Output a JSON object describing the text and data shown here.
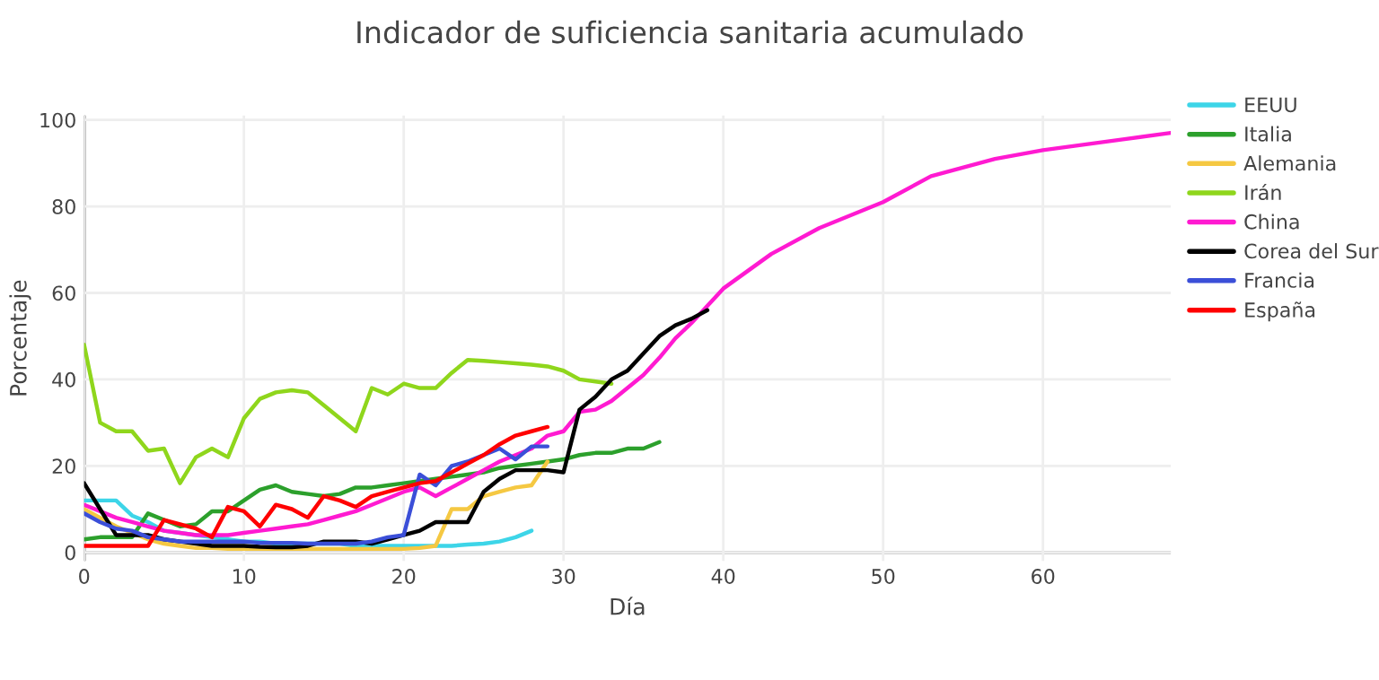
{
  "chart_data": {
    "type": "line",
    "title": "Indicador de suficiencia sanitaria acumulado",
    "xlabel": "Día",
    "ylabel": "Porcentaje",
    "xlim": [
      0,
      68
    ],
    "ylim": [
      -2,
      101
    ],
    "xticks": [
      0,
      10,
      20,
      30,
      40,
      50,
      60
    ],
    "yticks": [
      0,
      20,
      40,
      60,
      80,
      100
    ],
    "grid": true,
    "legend": "right",
    "series": [
      {
        "name": "EEUU",
        "color": "#3dd5e8",
        "x": [
          0,
          1,
          2,
          3,
          4,
          5,
          6,
          7,
          8,
          9,
          10,
          11,
          12,
          13,
          14,
          15,
          16,
          17,
          18,
          19,
          20,
          21,
          22,
          23,
          24,
          25,
          26,
          27,
          28
        ],
        "values": [
          12,
          12,
          12,
          8.5,
          7,
          5,
          4.5,
          4,
          3.5,
          3,
          2.5,
          2.5,
          2,
          2,
          2,
          2,
          2,
          1.5,
          1.5,
          1.5,
          1.5,
          1.5,
          1.5,
          1.5,
          1.8,
          2,
          2.5,
          3.5,
          5
        ]
      },
      {
        "name": "Italia",
        "color": "#2ca02c",
        "x": [
          0,
          1,
          2,
          3,
          4,
          5,
          6,
          7,
          8,
          9,
          10,
          11,
          12,
          13,
          14,
          15,
          16,
          17,
          18,
          19,
          20,
          21,
          22,
          23,
          24,
          25,
          26,
          27,
          28,
          29,
          30,
          31,
          32,
          33,
          34,
          35,
          36
        ],
        "values": [
          3,
          3.5,
          3.5,
          3.5,
          9,
          7.5,
          6,
          6.5,
          9.5,
          9.5,
          12,
          14.5,
          15.5,
          14,
          13.5,
          13,
          13.5,
          15,
          15,
          15.5,
          16,
          16.5,
          17,
          17.5,
          18,
          18.5,
          19.5,
          20,
          20.5,
          21,
          21.5,
          22.5,
          23,
          23,
          24,
          24,
          25.5
        ]
      },
      {
        "name": "Alemania",
        "color": "#f5c842",
        "x": [
          0,
          1,
          2,
          3,
          4,
          5,
          6,
          7,
          8,
          9,
          10,
          11,
          12,
          13,
          14,
          15,
          16,
          17,
          18,
          19,
          20,
          21,
          22,
          23,
          24,
          25,
          26,
          27,
          28,
          29
        ],
        "values": [
          10,
          8,
          6,
          4.5,
          3,
          2,
          1.5,
          1,
          1,
          0.8,
          0.8,
          0.8,
          0.8,
          0.8,
          0.8,
          0.8,
          0.8,
          0.8,
          0.8,
          0.8,
          0.8,
          1,
          1.5,
          10,
          10,
          13,
          14,
          15,
          15.5,
          21
        ]
      },
      {
        "name": "Irán",
        "color": "#8fd61c",
        "x": [
          0,
          1,
          2,
          3,
          4,
          5,
          6,
          7,
          8,
          9,
          10,
          11,
          12,
          13,
          14,
          15,
          16,
          17,
          18,
          19,
          20,
          21,
          22,
          23,
          24,
          25,
          26,
          27,
          28,
          29,
          30,
          31,
          32,
          33
        ],
        "values": [
          48,
          30,
          28,
          28,
          23.5,
          24,
          16,
          22,
          24,
          22,
          31,
          35.5,
          37,
          37.5,
          37,
          34,
          31,
          28,
          38,
          36.5,
          39,
          38,
          38,
          41.5,
          44.5,
          44.3,
          44,
          43.7,
          43.4,
          43,
          42,
          40,
          39.5,
          39
        ]
      },
      {
        "name": "China",
        "color": "#ff1ad1",
        "x": [
          0,
          1,
          2,
          3,
          4,
          5,
          6,
          7,
          8,
          9,
          10,
          11,
          12,
          13,
          14,
          15,
          16,
          17,
          18,
          19,
          20,
          21,
          22,
          23,
          24,
          25,
          26,
          27,
          28,
          29,
          30,
          31,
          32,
          33,
          34,
          35,
          36,
          37,
          38,
          39,
          40,
          43,
          46,
          50,
          53,
          57,
          60,
          65,
          68
        ],
        "values": [
          11,
          9.5,
          8,
          7,
          6,
          5,
          4.5,
          4,
          4,
          4,
          4.5,
          5,
          5.5,
          6,
          6.5,
          7.5,
          8.5,
          9.5,
          11,
          12.5,
          14,
          15,
          13,
          15,
          17,
          19,
          21,
          22.5,
          24,
          27,
          28,
          32.5,
          33,
          35,
          38,
          41,
          45,
          49.5,
          53,
          57,
          61,
          69,
          75,
          81,
          87,
          91,
          93,
          95.5,
          97
        ]
      },
      {
        "name": "Corea del Sur",
        "color": "#000000",
        "x": [
          0,
          1,
          2,
          3,
          4,
          5,
          6,
          7,
          8,
          9,
          10,
          11,
          12,
          13,
          14,
          15,
          16,
          17,
          18,
          19,
          20,
          21,
          22,
          23,
          24,
          25,
          26,
          27,
          28,
          29,
          30,
          31,
          32,
          33,
          34,
          35,
          36,
          37,
          38,
          39
        ],
        "values": [
          16,
          10,
          4,
          4,
          4,
          3,
          2.5,
          2,
          1.5,
          1.5,
          1.5,
          1.3,
          1.2,
          1.2,
          1.5,
          2.5,
          2.5,
          2.5,
          2,
          3,
          4,
          5,
          7,
          7,
          7,
          14,
          17,
          19,
          19,
          19,
          18.5,
          33,
          36,
          40,
          42,
          46,
          50,
          52.5,
          54,
          56
        ]
      },
      {
        "name": "Francia",
        "color": "#3b4fd8",
        "x": [
          0,
          1,
          2,
          3,
          4,
          5,
          6,
          7,
          8,
          9,
          10,
          11,
          12,
          13,
          14,
          15,
          16,
          17,
          18,
          19,
          20,
          21,
          22,
          23,
          24,
          25,
          26,
          27,
          28,
          29
        ],
        "values": [
          9,
          7,
          5.5,
          5,
          3.5,
          3,
          2.5,
          2.5,
          2.5,
          2.5,
          2.5,
          2.2,
          2.2,
          2.2,
          2,
          2,
          2,
          2,
          2.5,
          3.5,
          4,
          18,
          15.5,
          20,
          21,
          22.5,
          24,
          21.5,
          24.5,
          24.5
        ]
      },
      {
        "name": "España",
        "color": "#ff0000",
        "x": [
          0,
          1,
          2,
          3,
          4,
          5,
          6,
          7,
          8,
          9,
          10,
          11,
          12,
          13,
          14,
          15,
          16,
          17,
          18,
          19,
          20,
          21,
          22,
          23,
          24,
          25,
          26,
          27,
          28,
          29
        ],
        "values": [
          1.5,
          1.5,
          1.5,
          1.5,
          1.5,
          7.5,
          6.5,
          5.5,
          3.5,
          10.5,
          9.5,
          6,
          11,
          10,
          8,
          13,
          12,
          10.5,
          13,
          14,
          15,
          16,
          16.5,
          18.5,
          20.5,
          22.5,
          25,
          27,
          28,
          29
        ]
      }
    ]
  }
}
